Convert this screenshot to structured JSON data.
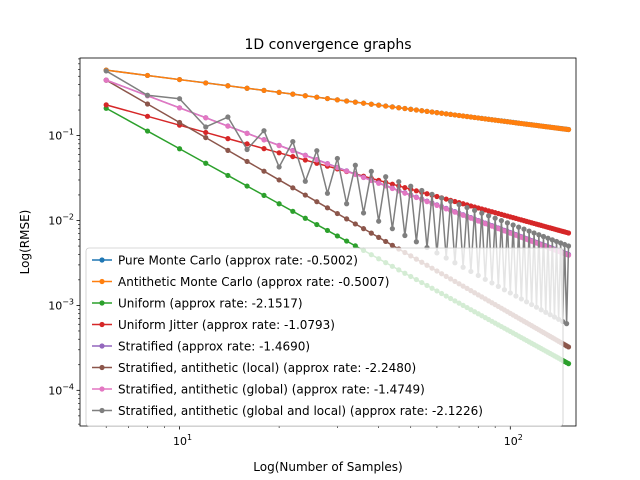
{
  "chart_data": {
    "type": "line",
    "title": "1D convergence graphs",
    "xlabel": "Log(Number of Samples)",
    "ylabel": "Log(RMSE)",
    "x_scale": "log",
    "y_scale": "log",
    "xlim": [
      5.0,
      158
    ],
    "ylim": [
      3.8e-05,
      0.82
    ],
    "grid": false,
    "legend_location": "lower left",
    "x_ticks": [
      {
        "value": 10,
        "label": "10",
        "exp": "1"
      },
      {
        "value": 100,
        "label": "10",
        "exp": "2"
      }
    ],
    "y_ticks": [
      {
        "value": 0.0001,
        "label": "10",
        "exp": "−4"
      },
      {
        "value": 0.001,
        "label": "10",
        "exp": "−3"
      },
      {
        "value": 0.01,
        "label": "10",
        "exp": "−2"
      },
      {
        "value": 0.1,
        "label": "10",
        "exp": "−1"
      }
    ],
    "x": {
      "start": 6,
      "end": 150,
      "step": 2
    },
    "series": [
      {
        "name": "Pure Monte Carlo (approx rate: -0.5002)",
        "color": "#1f77b4",
        "model": "power",
        "y_at_start": 0.59,
        "rate": -0.5002
      },
      {
        "name": "Antithetic Monte Carlo (approx rate: -0.5007)",
        "color": "#ff7f0e",
        "model": "power",
        "y_at_start": 0.59,
        "rate": -0.5007
      },
      {
        "name": "Uniform (approx rate: -2.1517)",
        "color": "#2ca02c",
        "model": "power",
        "y_at_start": 0.21,
        "rate": -2.1517
      },
      {
        "name": "Uniform Jitter (approx rate: -1.0793)",
        "color": "#d62728",
        "model": "power",
        "y_at_start": 0.23,
        "rate": -1.0793
      },
      {
        "name": "Stratified (approx rate: -1.4690)",
        "color": "#9467bd",
        "model": "power",
        "y_at_start": 0.45,
        "rate": -1.469
      },
      {
        "name": "Stratified, antithetic (local) (approx rate: -2.2480)",
        "color": "#8c564b",
        "model": "power",
        "y_at_start": 0.45,
        "rate": -2.248
      },
      {
        "name": "Stratified, antithetic (global) (approx rate: -1.4749)",
        "color": "#e377c2",
        "model": "power",
        "y_at_start": 0.45,
        "rate": -1.4749
      },
      {
        "name": "Stratified, antithetic (global and local) (approx rate: -2.1226)",
        "color": "#7f7f7f",
        "model": "oscillating",
        "y_at_start": 0.55,
        "upper_rate": -1.4749,
        "lower_rate": -2.1226
      }
    ]
  }
}
